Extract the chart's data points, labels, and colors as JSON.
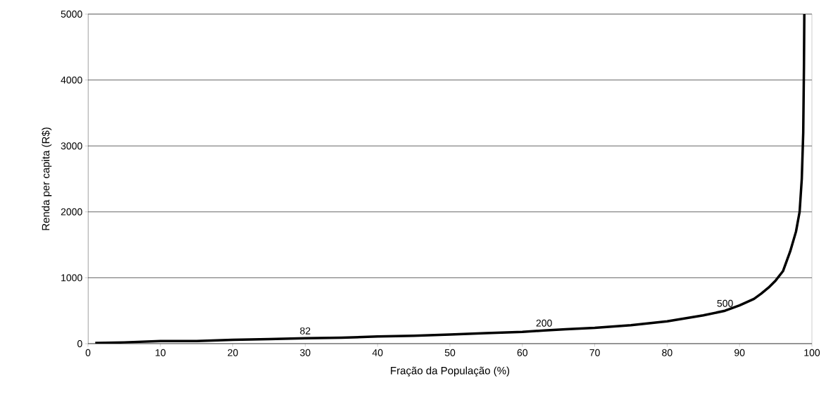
{
  "chart_data": {
    "type": "line",
    "xlabel": "Fração da População (%)",
    "ylabel": "Renda per capita (R$)",
    "series": [
      {
        "color": "#000000",
        "x": [
          1,
          5,
          10,
          15,
          20,
          25,
          30,
          35,
          40,
          45,
          50,
          55,
          60,
          63,
          66,
          70,
          75,
          80,
          85,
          88,
          90,
          92,
          93,
          94,
          95,
          96,
          97,
          97.8,
          98.3,
          98.6,
          98.8,
          98.9,
          98.95
        ],
        "values": [
          10,
          20,
          40,
          40,
          60,
          70,
          82,
          90,
          110,
          120,
          140,
          160,
          180,
          200,
          220,
          240,
          280,
          340,
          430,
          500,
          580,
          680,
          760,
          850,
          960,
          1100,
          1400,
          1700,
          2000,
          2500,
          3200,
          4200,
          5000
        ]
      }
    ],
    "annotations": [
      {
        "text": "82",
        "x": 30,
        "y": 82
      },
      {
        "text": "200",
        "x": 63,
        "y": 200
      },
      {
        "text": "500",
        "x": 88,
        "y": 500
      }
    ],
    "xlim": [
      0,
      100
    ],
    "ylim": [
      0,
      5000
    ],
    "xticks": [
      0,
      10,
      20,
      30,
      40,
      50,
      60,
      70,
      80,
      90,
      100
    ],
    "yticks": [
      0,
      1000,
      2000,
      3000,
      4000,
      5000
    ],
    "grid": "y",
    "marker": "none",
    "line_style": "solid"
  }
}
